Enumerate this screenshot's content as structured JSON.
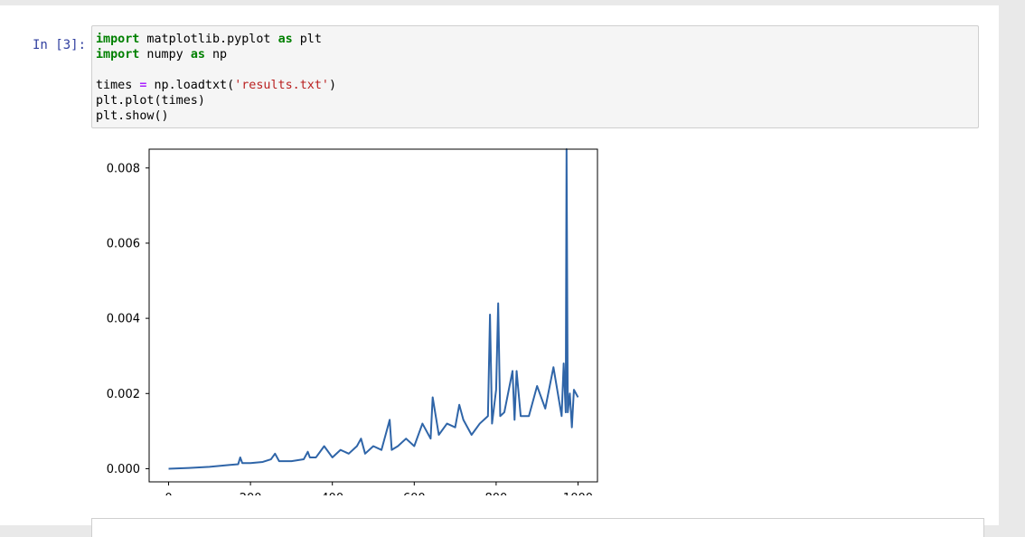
{
  "cell": {
    "prompt": "In [3]:",
    "code_lines": [
      [
        {
          "t": "import",
          "c": "kw"
        },
        {
          "t": " matplotlib.pyplot "
        },
        {
          "t": "as",
          "c": "kw"
        },
        {
          "t": " plt"
        }
      ],
      [
        {
          "t": "import",
          "c": "kw"
        },
        {
          "t": " numpy "
        },
        {
          "t": "as",
          "c": "kw"
        },
        {
          "t": " np"
        }
      ],
      [],
      [
        {
          "t": "times "
        },
        {
          "t": "=",
          "c": "op"
        },
        {
          "t": " np.loadtxt("
        },
        {
          "t": "'results.txt'",
          "c": "st"
        },
        {
          "t": ")"
        }
      ],
      [
        {
          "t": "plt.plot(times)"
        }
      ],
      [
        {
          "t": "plt.show()"
        }
      ]
    ]
  },
  "chart_data": {
    "type": "line",
    "xlim": [
      -47.5,
      1047.5
    ],
    "ylim": [
      -0.00035,
      0.0085
    ],
    "xticks": [
      0,
      200,
      400,
      600,
      800,
      1000
    ],
    "xtick_labels": [
      "0",
      "200",
      "400",
      "600",
      "800",
      "1000"
    ],
    "yticks": [
      0.0,
      0.002,
      0.004,
      0.006,
      0.008
    ],
    "ytick_labels": [
      "0.000",
      "0.002",
      "0.004",
      "0.006",
      "0.008"
    ],
    "grid": false,
    "line_color": "#2f65a8",
    "series": [
      {
        "x": [
          0,
          50,
          100,
          150,
          170,
          175,
          180,
          200,
          230,
          250,
          260,
          270,
          300,
          330,
          340,
          345,
          360,
          380,
          400,
          420,
          440,
          460,
          470,
          480,
          500,
          520,
          540,
          545,
          560,
          580,
          600,
          620,
          640,
          645,
          660,
          680,
          700,
          710,
          720,
          740,
          760,
          780,
          785,
          790,
          800,
          805,
          810,
          820,
          840,
          845,
          850,
          860,
          880,
          900,
          920,
          940,
          960,
          965,
          970,
          972,
          975,
          980,
          985,
          990,
          1000
        ],
        "values": [
          0.0,
          2e-05,
          5e-05,
          0.0001,
          0.00012,
          0.0003,
          0.00015,
          0.00015,
          0.00018,
          0.00025,
          0.0004,
          0.0002,
          0.0002,
          0.00025,
          0.00045,
          0.0003,
          0.0003,
          0.0006,
          0.0003,
          0.0005,
          0.0004,
          0.0006,
          0.0008,
          0.0004,
          0.0006,
          0.0005,
          0.0013,
          0.0005,
          0.0006,
          0.0008,
          0.0006,
          0.0012,
          0.0008,
          0.0019,
          0.0009,
          0.0012,
          0.0011,
          0.0017,
          0.0013,
          0.0009,
          0.0012,
          0.0014,
          0.0041,
          0.0012,
          0.0021,
          0.0044,
          0.0014,
          0.0015,
          0.0026,
          0.0013,
          0.0026,
          0.0014,
          0.0014,
          0.0022,
          0.0016,
          0.0027,
          0.0014,
          0.0028,
          0.0015,
          0.0085,
          0.0015,
          0.002,
          0.0011,
          0.0021,
          0.0019
        ]
      }
    ]
  }
}
